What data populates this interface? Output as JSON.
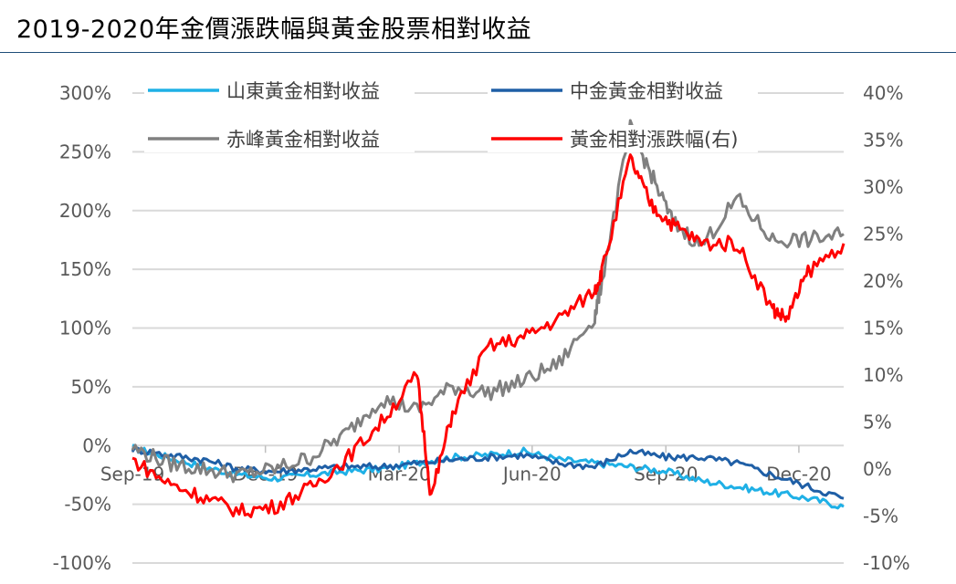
{
  "header": {
    "title": "2019-2020年金價漲跌幅與黃金股票相對收益"
  },
  "chart_data": {
    "type": "line",
    "title": "2019-2020年金價漲跌幅與黃金股票相對收益",
    "x_ticks": [
      "Sep-19",
      "Dec-19",
      "Mar-20",
      "Jun-20",
      "Sep-20",
      "Dec-20"
    ],
    "y_left": {
      "ticks": [
        "300%",
        "250%",
        "200%",
        "150%",
        "100%",
        "50%",
        "0%",
        "-50%",
        "-100%"
      ],
      "ylim": [
        -100,
        300
      ]
    },
    "y_right": {
      "ticks": [
        "40%",
        "35%",
        "30%",
        "25%",
        "20%",
        "15%",
        "10%",
        "5%",
        "0%",
        "-5%",
        "-10%"
      ],
      "ylim": [
        -10,
        40
      ]
    },
    "legend_position": "top",
    "grid": true,
    "series": [
      {
        "name": "山東黃金相對收益",
        "color": "#1fb0e6",
        "axis": "left",
        "x": [
          0,
          0.05,
          0.1,
          0.15,
          0.2,
          0.25,
          0.3,
          0.35,
          0.4,
          0.45,
          0.5,
          0.55,
          0.6,
          0.65,
          0.7,
          0.75,
          0.8,
          0.85,
          0.9,
          0.95,
          1.0
        ],
        "values": [
          -2,
          -10,
          -18,
          -25,
          -28,
          -25,
          -22,
          -20,
          -15,
          -10,
          -8,
          -5,
          -12,
          -15,
          -18,
          -22,
          -30,
          -35,
          -40,
          -45,
          -52
        ]
      },
      {
        "name": "中金黃金相對收益",
        "color": "#1f5fa6",
        "axis": "left",
        "x": [
          0,
          0.05,
          0.1,
          0.15,
          0.2,
          0.25,
          0.3,
          0.35,
          0.4,
          0.45,
          0.5,
          0.55,
          0.6,
          0.65,
          0.7,
          0.75,
          0.8,
          0.85,
          0.9,
          0.95,
          1.0
        ],
        "values": [
          -3,
          -8,
          -12,
          -20,
          -22,
          -20,
          -18,
          -18,
          -15,
          -12,
          -10,
          -8,
          -15,
          -18,
          -5,
          -10,
          -10,
          -15,
          -25,
          -35,
          -45
        ]
      },
      {
        "name": "赤峰黃金相對收益",
        "color": "#808080",
        "axis": "left",
        "x": [
          0,
          0.05,
          0.1,
          0.15,
          0.2,
          0.25,
          0.3,
          0.35,
          0.4,
          0.45,
          0.5,
          0.55,
          0.6,
          0.65,
          0.66,
          0.7,
          0.73,
          0.76,
          0.8,
          0.85,
          0.9,
          0.95,
          1.0
        ],
        "values": [
          -2,
          -15,
          -20,
          -25,
          -20,
          -10,
          10,
          40,
          30,
          50,
          45,
          55,
          70,
          110,
          140,
          270,
          230,
          190,
          170,
          210,
          175,
          175,
          180
        ]
      },
      {
        "name": "黃金相對漲跌幅(右)",
        "color": "#ff0000",
        "axis": "right",
        "x": [
          0,
          0.05,
          0.1,
          0.15,
          0.2,
          0.25,
          0.3,
          0.35,
          0.4,
          0.42,
          0.45,
          0.5,
          0.55,
          0.6,
          0.65,
          0.66,
          0.7,
          0.73,
          0.76,
          0.8,
          0.85,
          0.9,
          0.92,
          0.95,
          1.0
        ],
        "values": [
          1,
          -1.5,
          -3,
          -4.5,
          -4,
          -2,
          1,
          5,
          10,
          -3,
          6,
          13,
          14,
          16,
          19,
          21,
          33,
          28,
          26,
          24,
          24,
          17,
          16,
          21,
          24
        ]
      }
    ]
  }
}
